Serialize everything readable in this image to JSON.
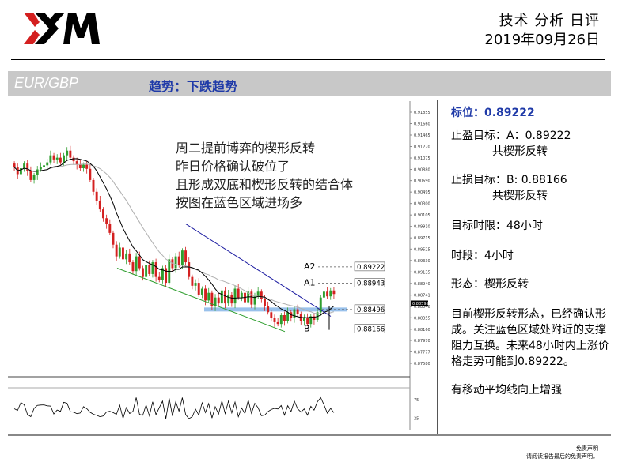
{
  "header": {
    "brand": "XM",
    "report_title": "技术 分析 日评",
    "report_date": "2019年09月26日"
  },
  "title_bar": {
    "pair": "EUR/GBP",
    "trend": "趋势：下跌趋势"
  },
  "chart_note": [
    "周二提前博弈的楔形反转",
    "昨日价格确认破位了",
    "且形成双底和楔形反转的结合体",
    "按图在蓝色区域进场多"
  ],
  "side_panel": {
    "target_label": "标位：0.89222",
    "tp_line1": "止盈目标：A：0.89222",
    "tp_line2": "共楔形反转",
    "sl_line1": "止损目标：B: 0.88166",
    "sl_line2": "共楔形反转",
    "horizon": "目标时限：48小时",
    "timeframe": "时段：4小时",
    "pattern": "形态：楔形反转",
    "analysis": "目前楔形反转形态，已经确认形成。关注蓝色区域处附近的支撑阻力互换。未来48小时内上涨价格走势可能到0.89222。",
    "ma_note": "有移动平均线向上增强"
  },
  "disclaimer": {
    "line1": "免责声明",
    "line2": "请阅读报告最后的免责声明。"
  },
  "colors": {
    "bull": "#2e9e2e",
    "bear": "#d42020",
    "ma_fast": "#000000",
    "ma_slow": "#b0b0b0",
    "upper_line": "#1a1aa0",
    "lower_line": "#2e9e2e",
    "entry_zone": "#7fb2e6",
    "title_bar": "#c8c8c8",
    "accent_blue": "#1f3aa8"
  },
  "chart_data": {
    "type": "candlestick",
    "title": "",
    "y_axis_ticks": [
      "0.91855",
      "0.91660",
      "0.91465",
      "0.91270",
      "0.91075",
      "0.90880",
      "0.90690",
      "0.90495",
      "0.90300",
      "0.90105",
      "0.89910",
      "0.89715",
      "0.89525",
      "0.89330",
      "0.89135",
      "0.88940",
      "0.88741",
      "0.88546",
      "0.88355",
      "0.88160",
      "0.87970",
      "0.87777",
      "0.87580"
    ],
    "ylim": [
      0.8758,
      0.91855
    ],
    "levels": [
      {
        "label": "A2",
        "value": 0.89222,
        "text": "0.89222"
      },
      {
        "label": "A1",
        "value": 0.88943,
        "text": "0.88943"
      },
      {
        "label": "",
        "value": 0.88496,
        "text": "0.88496"
      },
      {
        "label": "B",
        "value": 0.88166,
        "text": "0.88166"
      }
    ],
    "current_price": "0.88595",
    "indicator_ticks": [
      "75",
      "25"
    ],
    "candles_close": [
      0.9092,
      0.908,
      0.909,
      0.9098,
      0.9085,
      0.907,
      0.9078,
      0.9088,
      0.9092,
      0.9095,
      0.91,
      0.9112,
      0.9105,
      0.9108,
      0.91,
      0.9112,
      0.912,
      0.9108,
      0.9102,
      0.9096,
      0.909,
      0.9096,
      0.9089,
      0.907,
      0.905,
      0.9035,
      0.902,
      0.9005,
      0.8995,
      0.898,
      0.896,
      0.894,
      0.8955,
      0.8935,
      0.8945,
      0.893,
      0.8915,
      0.894,
      0.892,
      0.8905,
      0.8925,
      0.891,
      0.893,
      0.8905,
      0.89,
      0.892,
      0.8895,
      0.8935,
      0.892,
      0.894,
      0.8925,
      0.895,
      0.893,
      0.8905,
      0.889,
      0.8895,
      0.8875,
      0.8885,
      0.8865,
      0.8878,
      0.8855,
      0.887,
      0.886,
      0.8882,
      0.886,
      0.8875,
      0.886,
      0.8885,
      0.887,
      0.8878,
      0.8862,
      0.888,
      0.8858,
      0.8872,
      0.888,
      0.8868,
      0.8855,
      0.8845,
      0.8835,
      0.8828,
      0.8825,
      0.884,
      0.883,
      0.8845,
      0.8835,
      0.885,
      0.8842,
      0.883,
      0.8835,
      0.8825,
      0.8838,
      0.8832,
      0.8845,
      0.887,
      0.888,
      0.8872,
      0.8882,
      0.8876
    ]
  }
}
